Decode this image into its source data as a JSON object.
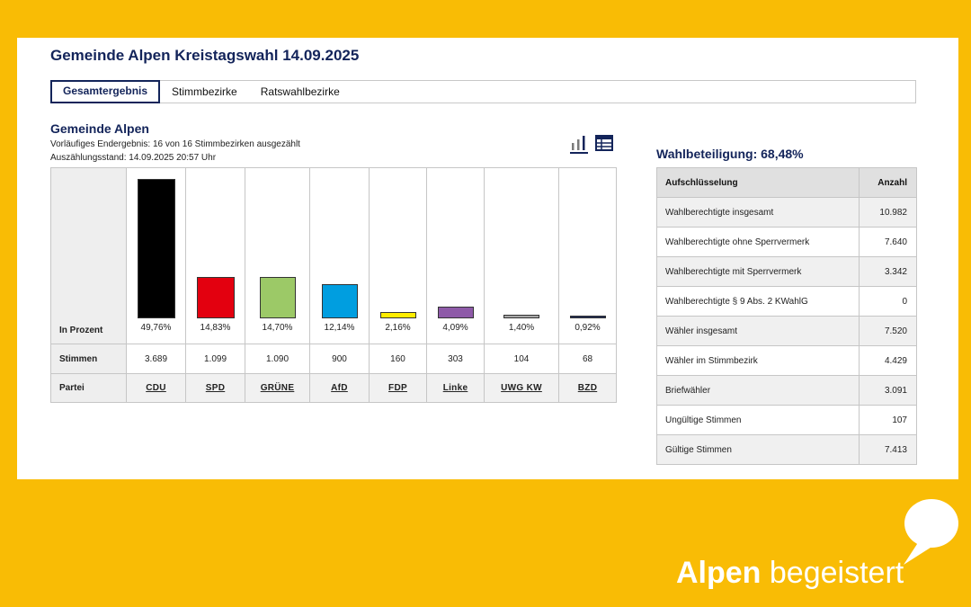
{
  "header": {
    "title": "Gemeinde Alpen Kreistagswahl 14.09.2025"
  },
  "tabs": [
    {
      "label": "Gesamtergebnis",
      "active": true
    },
    {
      "label": "Stimmbezirke",
      "active": false
    },
    {
      "label": "Ratswahlbezirke",
      "active": false
    }
  ],
  "section": {
    "title": "Gemeinde Alpen",
    "status": "Vorläufiges Endergebnis: 16 von 16 Stimmbezirken ausgezählt",
    "timestamp": "Auszählungsstand: 14.09.2025 20:57 Uhr"
  },
  "view_icons": [
    "bar-chart-icon",
    "table-icon"
  ],
  "results": {
    "row_labels": {
      "percent": "In Prozent",
      "votes": "Stimmen",
      "party": "Partei"
    },
    "parties": [
      {
        "name": "CDU",
        "percent_label": "49,76%",
        "percent": 49.76,
        "votes": "3.689",
        "color": "#000000"
      },
      {
        "name": "SPD",
        "percent_label": "14,83%",
        "percent": 14.83,
        "votes": "1.099",
        "color": "#e3000f"
      },
      {
        "name": "GRÜNE",
        "percent_label": "14,70%",
        "percent": 14.7,
        "votes": "1.090",
        "color": "#9cc967"
      },
      {
        "name": "AfD",
        "percent_label": "12,14%",
        "percent": 12.14,
        "votes": "900",
        "color": "#009ee0"
      },
      {
        "name": "FDP",
        "percent_label": "2,16%",
        "percent": 2.16,
        "votes": "160",
        "color": "#ffed00"
      },
      {
        "name": "Linke",
        "percent_label": "4,09%",
        "percent": 4.09,
        "votes": "303",
        "color": "#8e5aa8"
      },
      {
        "name": "UWG KW",
        "percent_label": "1,40%",
        "percent": 1.4,
        "votes": "104",
        "color": "#a8a8a8"
      },
      {
        "name": "BZD",
        "percent_label": "0,92%",
        "percent": 0.92,
        "votes": "68",
        "color": "#1c2a5a"
      }
    ]
  },
  "turnout": {
    "title": "Wahlbeteiligung: 68,48%",
    "headers": {
      "label": "Aufschlüsselung",
      "count": "Anzahl"
    },
    "rows": [
      {
        "label": "Wahlberechtigte insgesamt",
        "value": "10.982"
      },
      {
        "label": "Wahlberechtigte ohne Sperrvermerk",
        "value": "7.640"
      },
      {
        "label": "Wahlberechtigte mit Sperrvermerk",
        "value": "3.342"
      },
      {
        "label": "Wahlberechtigte § 9 Abs. 2 KWahlG",
        "value": "0"
      },
      {
        "label": "Wähler insgesamt",
        "value": "7.520"
      },
      {
        "label": "Wähler im Stimmbezirk",
        "value": "4.429"
      },
      {
        "label": "Briefwähler",
        "value": "3.091"
      },
      {
        "label": "Ungültige Stimmen",
        "value": "107"
      },
      {
        "label": "Gültige Stimmen",
        "value": "7.413"
      }
    ]
  },
  "brand": {
    "part1": "Alpen",
    "part2": " begeistert"
  },
  "colors": {
    "background": "#f9bc05",
    "title": "#13245a"
  }
}
